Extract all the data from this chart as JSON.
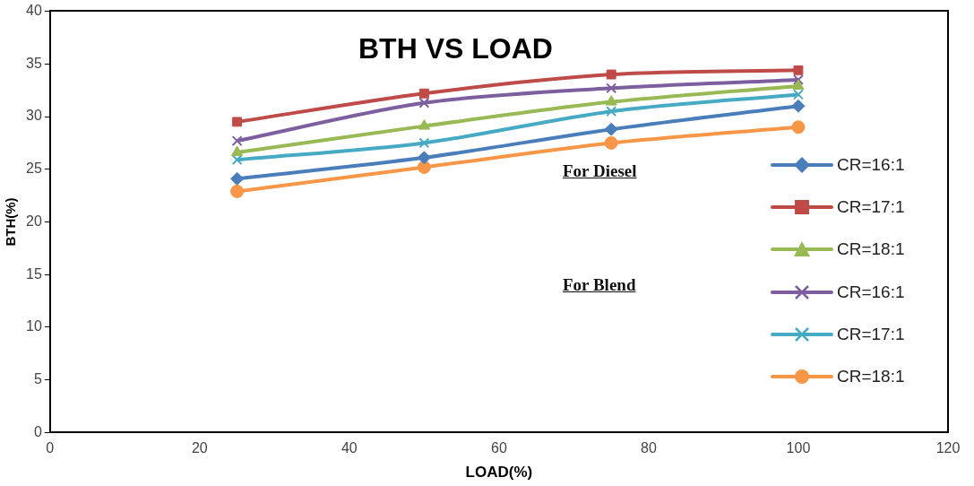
{
  "chart_data": {
    "type": "line",
    "title": "BTH VS LOAD",
    "xlabel": "LOAD(%)",
    "ylabel": "BTH(%)",
    "x": [
      25,
      50,
      75,
      100
    ],
    "xlim": [
      0,
      120
    ],
    "xticks": [
      0,
      20,
      40,
      60,
      80,
      100,
      120
    ],
    "ylim": [
      0,
      40
    ],
    "yticks": [
      0,
      5,
      10,
      15,
      20,
      25,
      30,
      35,
      40
    ],
    "grid": false,
    "legend": "right",
    "line_style": "solid",
    "annotations": [
      "For Diesel",
      "For Blend"
    ],
    "series": [
      {
        "name": "CR=16:1",
        "color": "#4a7ebb",
        "marker": "diamond",
        "values": [
          24.1,
          26.1,
          28.8,
          31.0
        ]
      },
      {
        "name": "CR=17:1",
        "color": "#be4b48",
        "marker": "square",
        "values": [
          29.5,
          32.2,
          34.0,
          34.4
        ]
      },
      {
        "name": "CR=18:1",
        "color": "#98b954",
        "marker": "triangle",
        "values": [
          26.6,
          29.1,
          31.4,
          32.9
        ]
      },
      {
        "name": "CR=16:1",
        "color": "#7d5fa0",
        "marker": "cross",
        "values": [
          27.7,
          31.3,
          32.7,
          33.5
        ]
      },
      {
        "name": "CR=17:1",
        "color": "#46aac5",
        "marker": "cross",
        "values": [
          25.9,
          27.5,
          30.5,
          32.1
        ]
      },
      {
        "name": "CR=18:1",
        "color": "#f79646",
        "marker": "circle",
        "values": [
          22.9,
          25.2,
          27.5,
          29.0
        ]
      }
    ]
  }
}
